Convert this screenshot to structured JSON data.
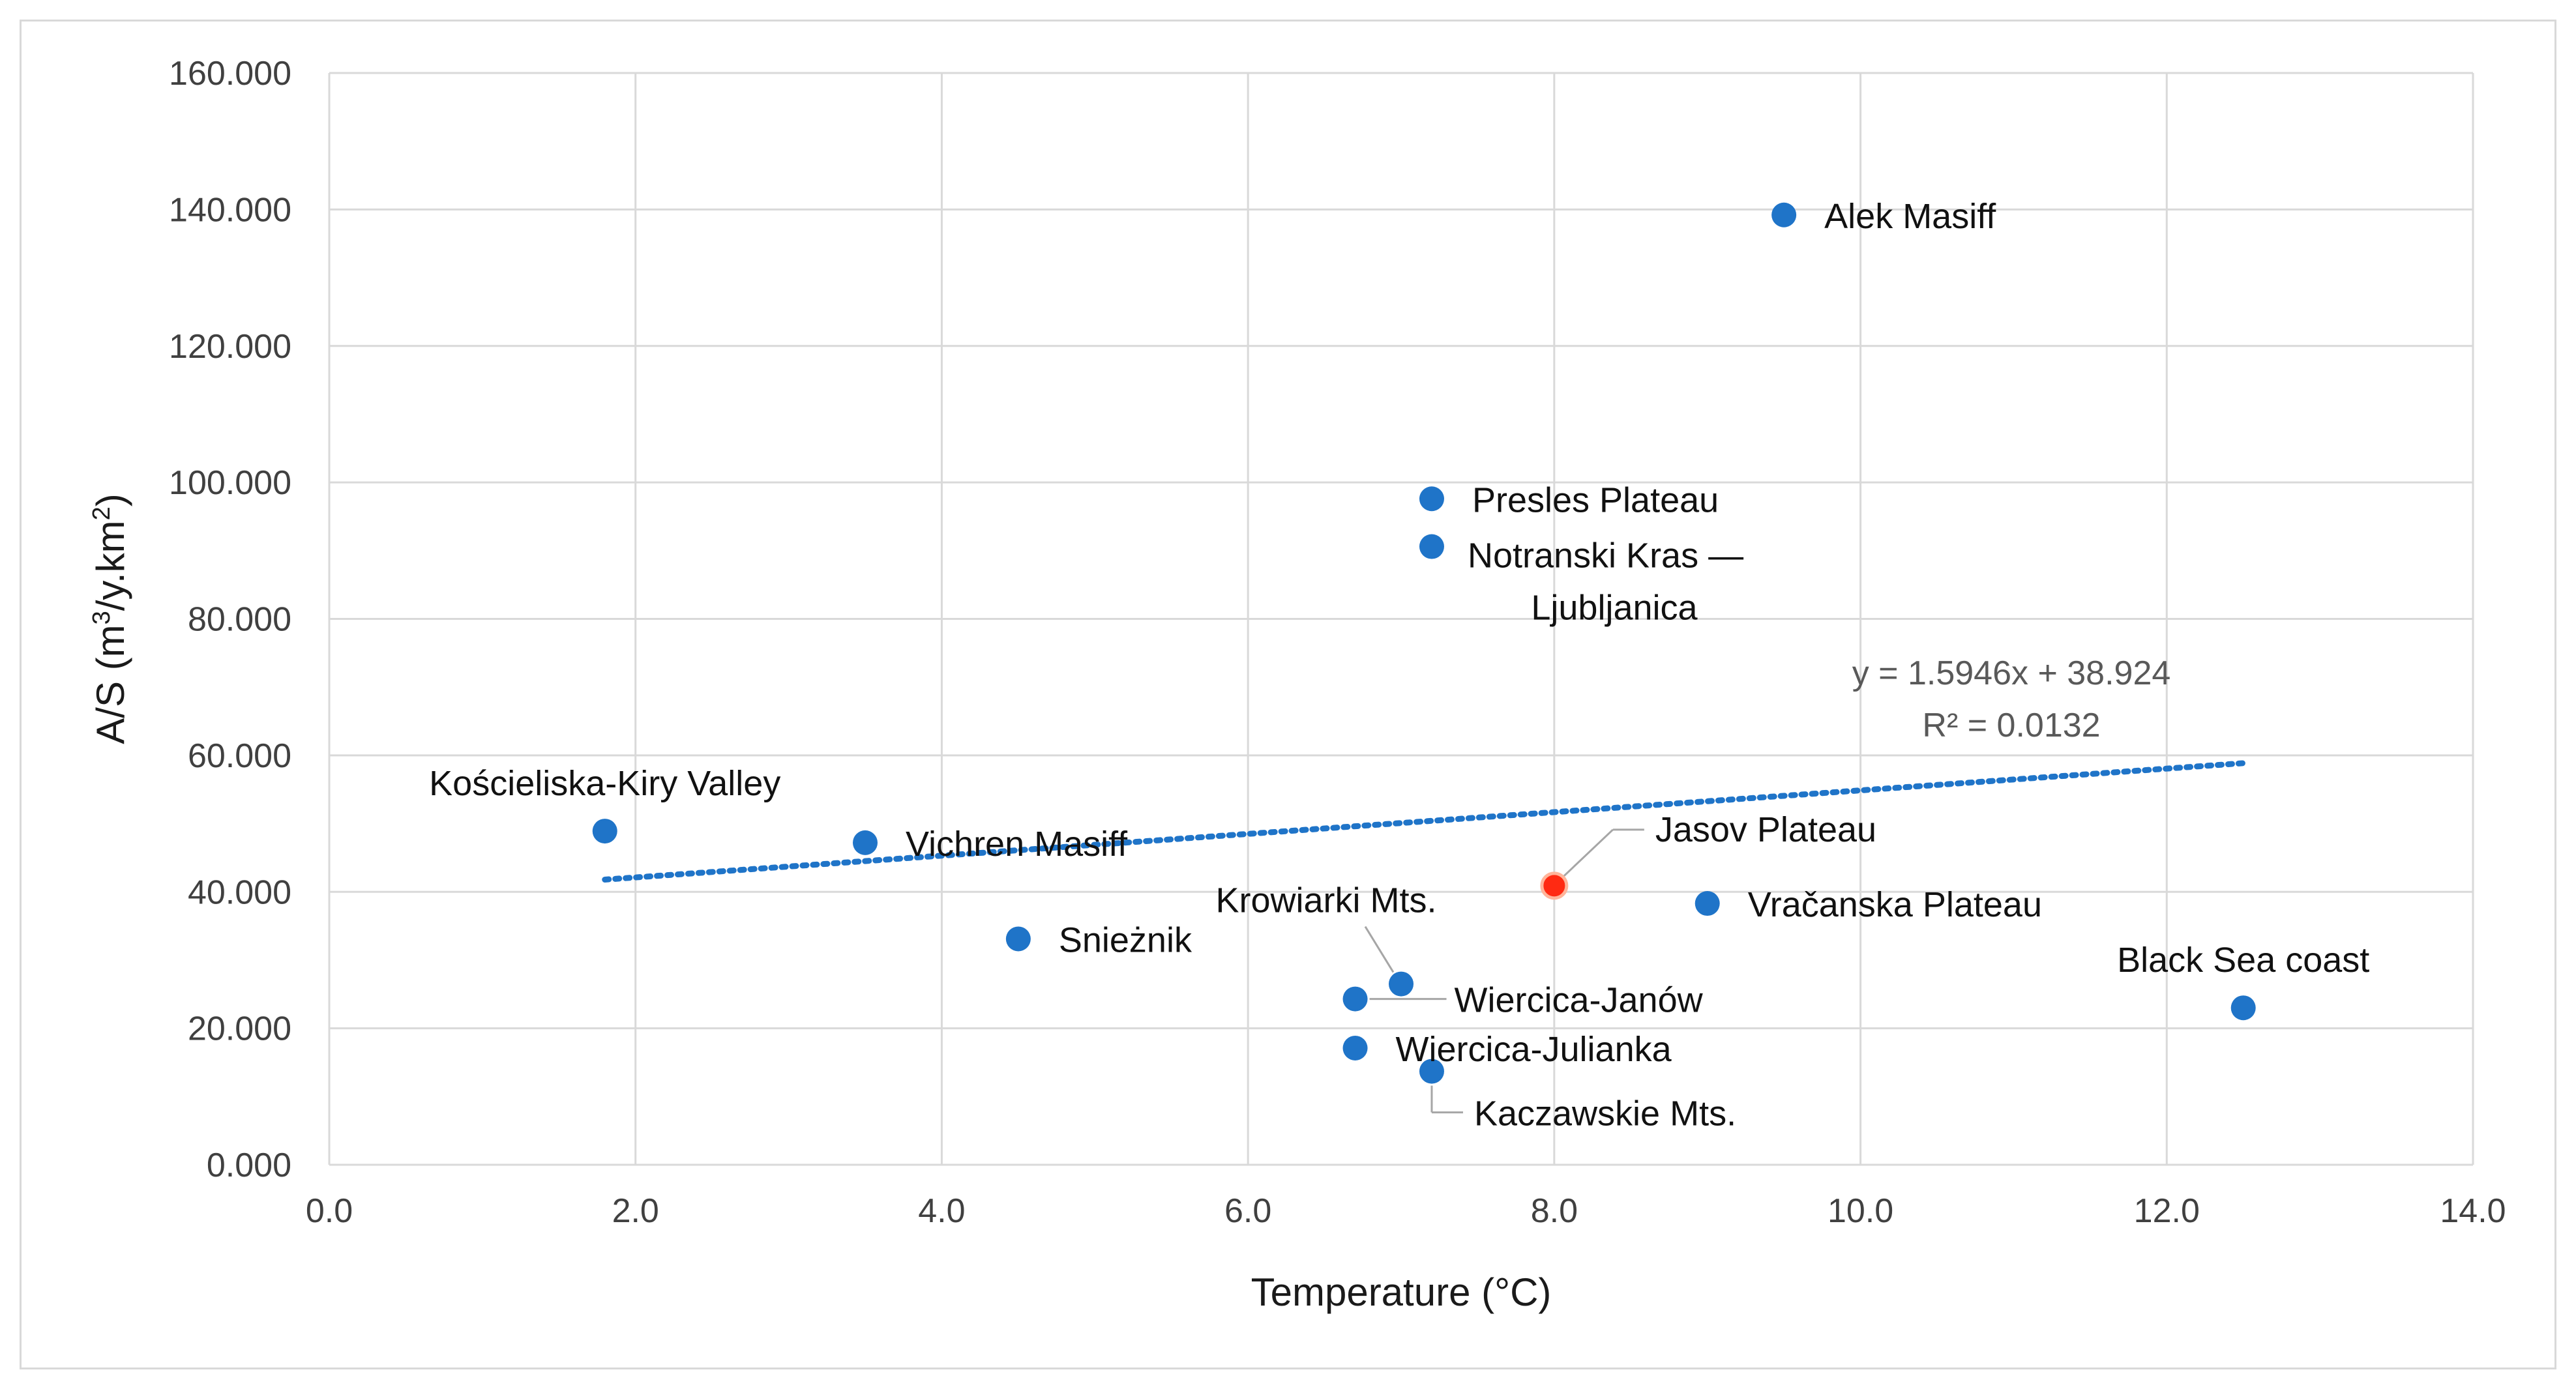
{
  "chart_data": {
    "type": "scatter",
    "xlabel": "Temperature (°C)",
    "ylabel_main": "A/S (m",
    "ylabel_sup1": "3",
    "ylabel_mid": "/y.km",
    "ylabel_sup2": "2",
    "ylabel_end": ")",
    "xlim": [
      0,
      14
    ],
    "ylim": [
      0,
      160
    ],
    "x_ticks": [
      "0.0",
      "2.0",
      "4.0",
      "6.0",
      "8.0",
      "10.0",
      "12.0",
      "14.0"
    ],
    "y_ticks": [
      "0.000",
      "20.000",
      "40.000",
      "60.000",
      "80.000",
      "100.000",
      "120.000",
      "140.000",
      "160.000"
    ],
    "grid": true,
    "colors": {
      "point": "#1f74c8",
      "highlight": "#ff2a12",
      "trend": "#1f74c8",
      "grid": "#d9d9d9"
    },
    "points": [
      {
        "label": "Kościeliska-Kiry Valley",
        "x": 1.8,
        "y": 48.9,
        "label_pos": "above"
      },
      {
        "label": "Vichren Masiff",
        "x": 3.5,
        "y": 47.2,
        "label_pos": "right"
      },
      {
        "label": "Snieżnik",
        "x": 4.5,
        "y": 33.1,
        "label_pos": "right"
      },
      {
        "label": "Krowiarki Mts.",
        "x": 7.0,
        "y": 26.5,
        "label_pos": "upper-left-leader"
      },
      {
        "label": "Wiercica-Janów",
        "x": 6.7,
        "y": 24.3,
        "label_pos": "right-leader"
      },
      {
        "label": "Wiercica-Julianka",
        "x": 6.7,
        "y": 17.1,
        "label_pos": "right"
      },
      {
        "label": "Kaczawskie Mts.",
        "x": 7.2,
        "y": 13.7,
        "label_pos": "below-leader"
      },
      {
        "label": "Presles Plateau",
        "x": 7.2,
        "y": 97.6,
        "label_pos": "right"
      },
      {
        "label": "Notranski Kras —",
        "label2": "Ljubljanica",
        "x": 7.2,
        "y": 90.6,
        "label_pos": "right-two-line"
      },
      {
        "label": "Alek Masiff",
        "x": 9.5,
        "y": 139.2,
        "label_pos": "right"
      },
      {
        "label": "Jasov Plateau",
        "x": 8.0,
        "y": 40.9,
        "label_pos": "upper-right-leader",
        "highlight": true
      },
      {
        "label": "Vračanska Plateau",
        "x": 9.0,
        "y": 38.3,
        "label_pos": "right"
      },
      {
        "label": "Black Sea coast",
        "x": 12.5,
        "y": 23.0,
        "label_pos": "above"
      }
    ],
    "trendline": {
      "type": "linear",
      "slope": 1.5946,
      "intercept": 38.924,
      "x_range": [
        1.8,
        12.5
      ],
      "equation": "y = 1.5946x + 38.924",
      "r2": "R² = 0.0132"
    }
  }
}
